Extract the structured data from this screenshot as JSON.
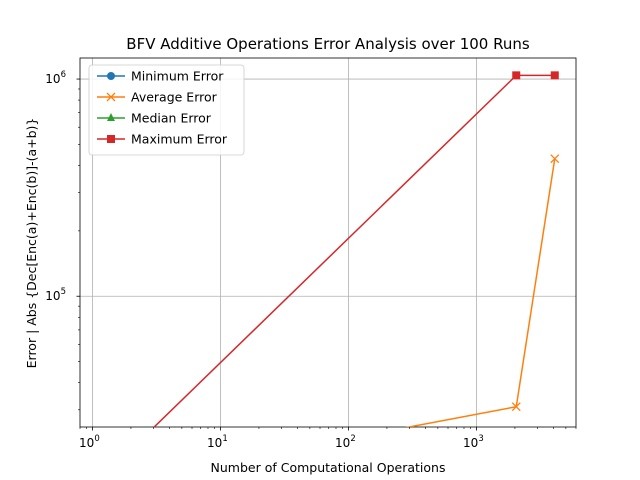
{
  "chart_data": {
    "type": "line",
    "title": "BFV Additive Operations Error Analysis over 100 Runs",
    "xlabel": "Number of Computational Operations",
    "ylabel": "Error | Abs {Dec[Enc(a)+Enc(b)]-(a+b)}",
    "xscale": "log",
    "yscale": "log",
    "xlim": [
      0.8,
      6000
    ],
    "ylim": [
      25000,
      1250000
    ],
    "xticks": [
      {
        "value": 1,
        "base": "10",
        "exp": "0"
      },
      {
        "value": 10,
        "base": "10",
        "exp": "1"
      },
      {
        "value": 100,
        "base": "10",
        "exp": "2"
      },
      {
        "value": 1000,
        "base": "10",
        "exp": "3"
      }
    ],
    "yticks": [
      {
        "value": 100000,
        "base": "10",
        "exp": "5"
      },
      {
        "value": 1000000,
        "base": "10",
        "exp": "6"
      }
    ],
    "grid": true,
    "legend_position": "upper left",
    "x": [
      1,
      2048,
      4096
    ],
    "series": [
      {
        "name": "Minimum Error",
        "color": "#1f77b4",
        "marker": "circle",
        "values": [
          0,
          0,
          0
        ]
      },
      {
        "name": "Average Error",
        "color": "#ff7f0e",
        "marker": "x",
        "values": [
          0,
          31000,
          430000
        ]
      },
      {
        "name": "Median Error",
        "color": "#2ca02c",
        "marker": "triangle",
        "values": [
          0,
          0,
          0
        ]
      },
      {
        "name": "Maximum Error",
        "color": "#d62728",
        "marker": "square",
        "values": [
          0,
          1040000,
          1040000
        ]
      }
    ]
  }
}
